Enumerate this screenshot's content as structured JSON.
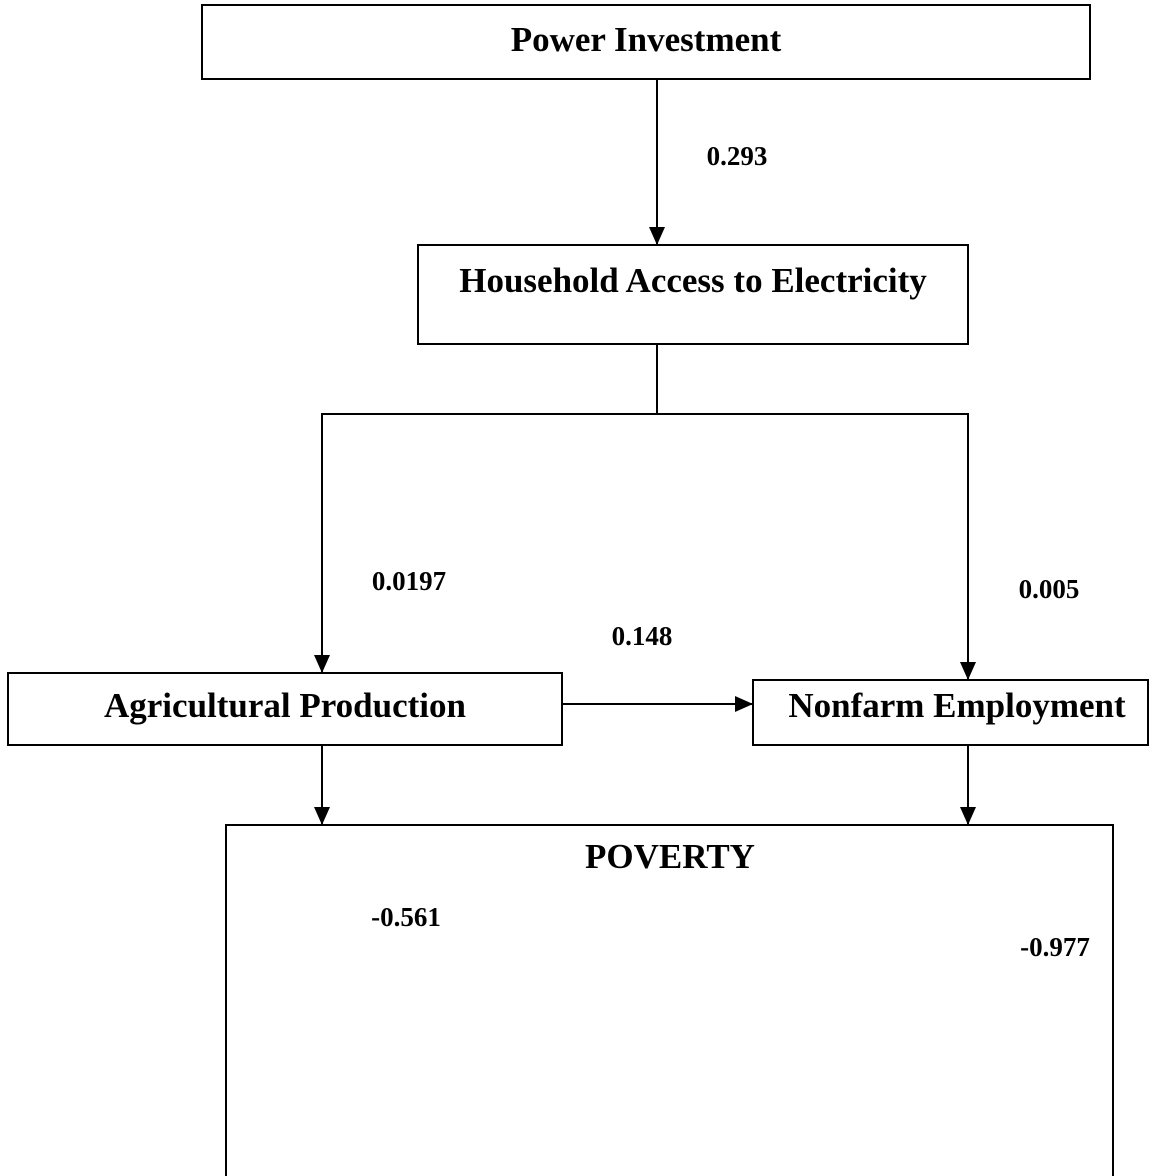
{
  "nodes": [
    {
      "label": "Power Investment"
    },
    {
      "label": "Household Access to Electricity"
    },
    {
      "label": "Agricultural Production"
    },
    {
      "label": "Nonfarm Employment"
    },
    {
      "label": "POVERTY"
    }
  ],
  "edges": [
    {
      "label": "0.293"
    },
    {
      "label": "0.0197"
    },
    {
      "label": "0.005"
    },
    {
      "label": "0.148"
    },
    {
      "label": "-0.561"
    },
    {
      "label": "-0.977"
    }
  ]
}
